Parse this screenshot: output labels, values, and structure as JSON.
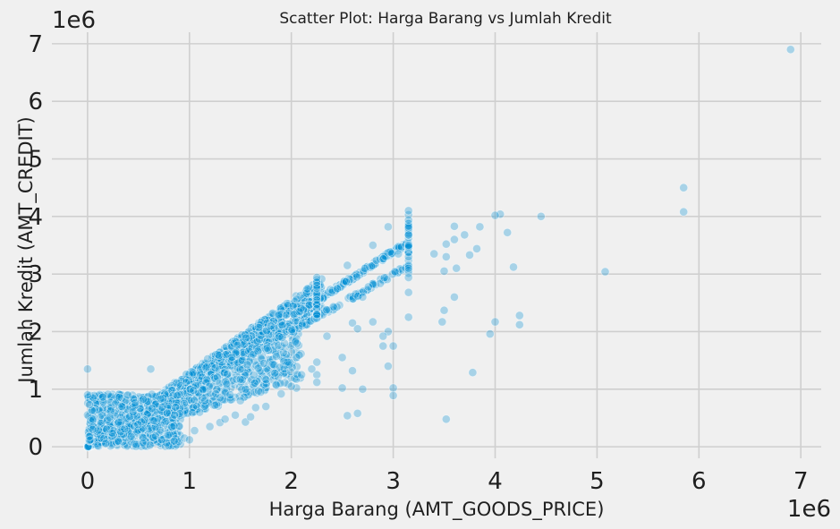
{
  "chart_data": {
    "type": "scatter",
    "title": "Scatter Plot: Harga Barang vs Jumlah Kredit",
    "xlabel": "Harga Barang (AMT_GOODS_PRICE)",
    "ylabel": "Jumlah Kredit (AMT_CREDIT)",
    "x_offset_text": "1e6",
    "y_offset_text": "1e6",
    "xlim": [
      -0.35,
      7.2
    ],
    "ylim": [
      -0.2,
      7.2
    ],
    "xticks": [
      0,
      1,
      2,
      3,
      4,
      5,
      6,
      7
    ],
    "yticks": [
      0,
      1,
      2,
      3,
      4,
      5,
      6,
      7
    ],
    "grid": true,
    "color": "#008fd5",
    "points": [
      [
        6.9,
        6.9
      ],
      [
        5.85,
        4.5
      ],
      [
        5.85,
        4.08
      ],
      [
        5.08,
        3.04
      ],
      [
        4.45,
        4.0
      ],
      [
        4.05,
        4.04
      ],
      [
        4.0,
        4.02
      ],
      [
        4.12,
        3.72
      ],
      [
        4.18,
        3.12
      ],
      [
        3.85,
        3.82
      ],
      [
        3.82,
        3.44
      ],
      [
        3.75,
        3.33
      ],
      [
        3.7,
        3.68
      ],
      [
        3.6,
        3.83
      ],
      [
        3.6,
        3.6
      ],
      [
        3.62,
        3.1
      ],
      [
        3.6,
        2.6
      ],
      [
        3.52,
        3.52
      ],
      [
        3.52,
        3.3
      ],
      [
        3.5,
        3.05
      ],
      [
        3.5,
        2.37
      ],
      [
        3.48,
        2.17
      ],
      [
        4.24,
        2.28
      ],
      [
        4.24,
        2.12
      ],
      [
        4.0,
        2.17
      ],
      [
        3.95,
        1.96
      ],
      [
        3.78,
        1.29
      ],
      [
        3.52,
        0.48
      ],
      [
        3.0,
        1.02
      ],
      [
        3.0,
        0.89
      ],
      [
        2.7,
        1.0
      ],
      [
        2.65,
        0.58
      ],
      [
        2.55,
        0.54
      ],
      [
        2.5,
        1.02
      ],
      [
        2.05,
        1.02
      ],
      [
        1.65,
        0.68
      ],
      [
        1.55,
        0.43
      ],
      [
        3.15,
        4.1
      ],
      [
        3.15,
        3.68
      ],
      [
        3.15,
        3.5
      ],
      [
        3.15,
        3.3
      ],
      [
        3.15,
        3.1
      ],
      [
        3.15,
        2.94
      ],
      [
        3.15,
        2.68
      ],
      [
        3.15,
        2.25
      ],
      [
        3.05,
        3.35
      ],
      [
        2.95,
        3.82
      ],
      [
        2.95,
        2.0
      ],
      [
        2.9,
        1.92
      ],
      [
        2.9,
        1.75
      ],
      [
        2.8,
        2.17
      ],
      [
        2.7,
        2.6
      ],
      [
        2.6,
        2.15
      ],
      [
        2.55,
        3.15
      ],
      [
        2.5,
        1.55
      ],
      [
        2.35,
        1.92
      ],
      [
        2.25,
        2.94
      ],
      [
        2.25,
        2.75
      ],
      [
        2.25,
        2.55
      ],
      [
        2.25,
        2.3
      ],
      [
        2.25,
        1.47
      ],
      [
        2.25,
        1.25
      ],
      [
        2.25,
        1.12
      ],
      [
        2.2,
        1.35
      ],
      [
        3.0,
        1.75
      ],
      [
        2.95,
        1.4
      ],
      [
        3.4,
        3.35
      ],
      [
        2.8,
        3.5
      ],
      [
        2.65,
        2.05
      ],
      [
        2.6,
        1.32
      ],
      [
        0.0,
        1.35
      ],
      [
        0.0,
        0.9
      ],
      [
        0.62,
        1.35
      ],
      [
        0.05,
        0.3
      ],
      [
        0.3,
        0.1
      ],
      [
        0.18,
        0.06
      ],
      [
        0.1,
        0.02
      ],
      [
        0.85,
        0.1
      ],
      [
        0.95,
        0.15
      ],
      [
        1.0,
        0.12
      ],
      [
        1.05,
        0.28
      ],
      [
        1.2,
        0.35
      ],
      [
        1.3,
        0.42
      ],
      [
        1.45,
        0.55
      ],
      [
        1.75,
        0.7
      ],
      [
        1.9,
        0.92
      ],
      [
        2.0,
        1.05
      ],
      [
        1.6,
        0.52
      ],
      [
        1.35,
        0.48
      ],
      [
        1.1,
        0.6
      ],
      [
        1.25,
        0.72
      ],
      [
        1.5,
        0.8
      ],
      [
        1.7,
        0.95
      ],
      [
        1.85,
        1.08
      ],
      [
        2.1,
        1.25
      ],
      [
        1.55,
        1.0
      ],
      [
        1.4,
        0.9
      ],
      [
        1.3,
        0.85
      ],
      [
        1.15,
        0.8
      ]
    ]
  }
}
